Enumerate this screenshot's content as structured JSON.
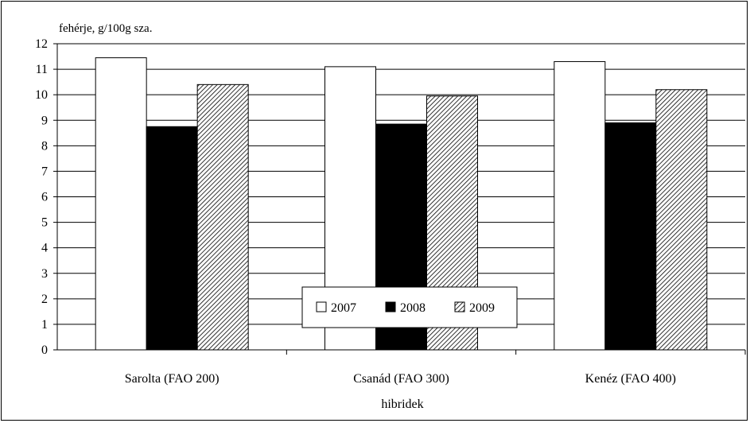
{
  "chart_data": {
    "type": "bar",
    "ylabel": "fehérje, g/100g sza.",
    "xlabel": "hibridek",
    "categories": [
      "Sarolta (FAO 200)",
      "Csanád (FAO 300)",
      "Kenéz (FAO 400)"
    ],
    "series": [
      {
        "name": "2007",
        "values": [
          11.45,
          11.1,
          11.3
        ],
        "fill": "white"
      },
      {
        "name": "2008",
        "values": [
          8.75,
          8.85,
          8.9
        ],
        "fill": "black"
      },
      {
        "name": "2009",
        "values": [
          10.4,
          9.95,
          10.2
        ],
        "fill": "hatched"
      }
    ],
    "ylim": [
      0,
      12
    ],
    "yticks": [
      "0",
      "1",
      "2",
      "3",
      "4",
      "5",
      "6",
      "7",
      "8",
      "9",
      "10",
      "11",
      "12"
    ],
    "grid": true,
    "legend": "bottom-center",
    "colors": {
      "ink": "#000000",
      "paper": "#ffffff"
    }
  }
}
